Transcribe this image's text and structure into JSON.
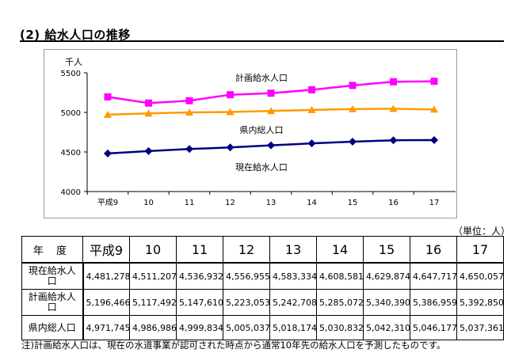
{
  "section_title": "(2) 給水人口の推移",
  "unit_note": "（単位：人）",
  "footnote": "注)計画給水人口は、現在の水道事業が認可された時点から通常10年先の給水人口を予測したものです。",
  "colors": {
    "plan": "#ff00ff",
    "pref": "#ff9900",
    "current": "#000080"
  },
  "chart_data": {
    "type": "line",
    "yunit": "千人",
    "categories": [
      "平成9",
      "10",
      "11",
      "12",
      "13",
      "14",
      "15",
      "16",
      "17"
    ],
    "ylim": [
      4000,
      5500
    ],
    "yticks": [
      "4000",
      "4500",
      "5000",
      "5500"
    ],
    "grid": false,
    "series": [
      {
        "name": "計画給水人口",
        "marker": "square",
        "values": [
          5196.466,
          5117.492,
          5147.61,
          5223.053,
          5242.708,
          5285.072,
          5340.39,
          5386.959,
          5392.85
        ]
      },
      {
        "name": "県内総人口",
        "marker": "triangle",
        "values": [
          4971.745,
          4986.986,
          4999.834,
          5005.037,
          5018.174,
          5030.832,
          5042.31,
          5046.177,
          5037.361
        ]
      },
      {
        "name": "現在給水人口",
        "marker": "diamond",
        "values": [
          4481.278,
          4511.207,
          4536.932,
          4556.955,
          4583.334,
          4608.581,
          4629.874,
          4647.717,
          4650.057
        ]
      }
    ]
  },
  "table": {
    "corner": "年 度",
    "headers": [
      "平成9",
      "10",
      "11",
      "12",
      "13",
      "14",
      "15",
      "16",
      "17"
    ],
    "rows": [
      {
        "label": "現在給水人口",
        "values": [
          "4,481,278",
          "4,511,207",
          "4,536,932",
          "4,556,955",
          "4,583,334",
          "4,608,581",
          "4,629,874",
          "4,647,717",
          "4,650,057"
        ]
      },
      {
        "label": "計画給水人口",
        "values": [
          "5,196,466",
          "5,117,492",
          "5,147,610",
          "5,223,053",
          "5,242,708",
          "5,285,072",
          "5,340,390",
          "5,386,959",
          "5,392,850"
        ]
      },
      {
        "label": "県内総人口",
        "values": [
          "4,971,745",
          "4,986,986",
          "4,999,834",
          "5,005,037",
          "5,018,174",
          "5,030,832",
          "5,042,310",
          "5,046,177",
          "5,037,361"
        ]
      }
    ]
  }
}
